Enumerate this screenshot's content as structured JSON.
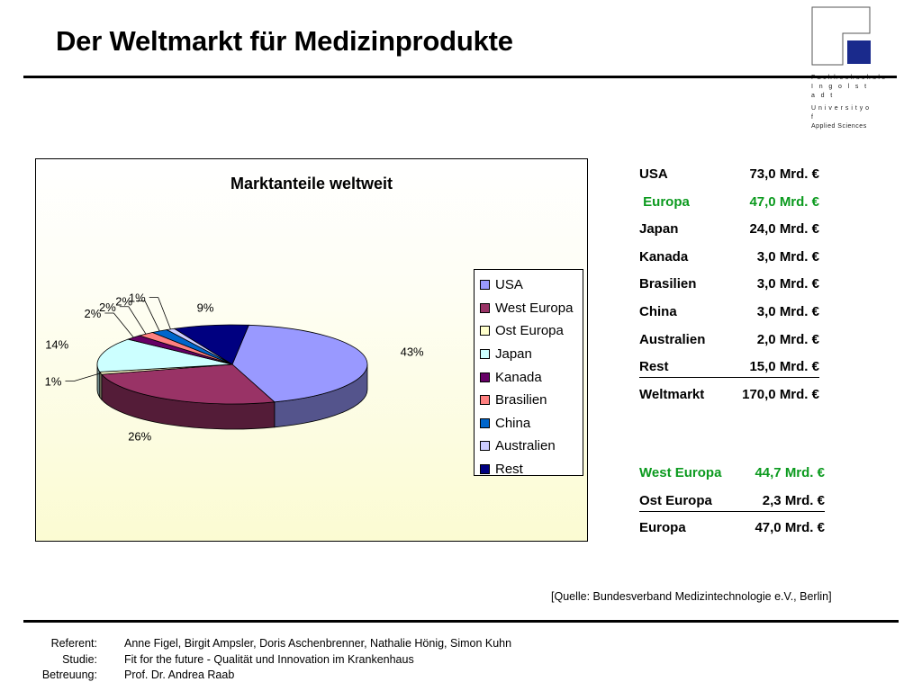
{
  "slide": {
    "title": "Der Weltmarkt für Medizinprodukte",
    "logo_lines": [
      "Fachhochschule",
      "I n g o l s t a d t",
      "U n i v e r s i t y  o f",
      "Applied Sciences"
    ],
    "source": "[Quelle: Bundesverband Medizintechnologie e.V., Berlin]"
  },
  "chart_data": {
    "type": "pie",
    "title": "Marktanteile weltweit",
    "categories": [
      "USA",
      "West Europa",
      "Ost Europa",
      "Japan",
      "Kanada",
      "Brasilien",
      "China",
      "Australien",
      "Rest"
    ],
    "values": [
      43,
      26,
      1,
      14,
      2,
      2,
      2,
      1,
      9
    ],
    "value_labels": [
      "43%",
      "26%",
      "1%",
      "14%",
      "2%",
      "2%",
      "2%",
      "1%",
      "9%"
    ],
    "colors": [
      "#9999ff",
      "#993366",
      "#ffffcc",
      "#ccffff",
      "#660066",
      "#ff8080",
      "#0066cc",
      "#ccccff",
      "#000080"
    ],
    "legend_position": "right",
    "three_d": true
  },
  "market_table": [
    {
      "label": "USA",
      "value": "73,0 Mrd. €",
      "color": "#000000",
      "underline": false
    },
    {
      "label": " Europa",
      "value": "47,0 Mrd. €",
      "color": "#0b9a1e",
      "underline": false
    },
    {
      "label": "Japan",
      "value": "24,0 Mrd. €",
      "color": "#000000",
      "underline": false
    },
    {
      "label": "Kanada",
      "value": "3,0 Mrd. €",
      "color": "#000000",
      "underline": false
    },
    {
      "label": "Brasilien",
      "value": "3,0 Mrd. €",
      "color": "#000000",
      "underline": false
    },
    {
      "label": "China",
      "value": "3,0 Mrd. €",
      "color": "#000000",
      "underline": false
    },
    {
      "label": "Australien",
      "value": "2,0 Mrd. €",
      "color": "#000000",
      "underline": false
    },
    {
      "label": "Rest",
      "value": "15,0 Mrd. €",
      "color": "#000000",
      "underline": true
    },
    {
      "label": "Weltmarkt",
      "value": "170,0 Mrd. €",
      "color": "#000000",
      "underline": false
    }
  ],
  "europe_table": [
    {
      "label": "West Europa",
      "value": "44,7 Mrd. €",
      "color": "#0b9a1e",
      "underline": false
    },
    {
      "label": "Ost Europa",
      "value": "2,3 Mrd. €",
      "color": "#000000",
      "underline": true
    },
    {
      "label": "Europa",
      "value": "47,0 Mrd. €",
      "color": "#000000",
      "underline": false
    }
  ],
  "footer": {
    "referent_label": "Referent:",
    "referent": "Anne Figel, Birgit Ampsler, Doris Aschenbrenner, Nathalie Hönig, Simon Kuhn",
    "studie_label": "Studie:",
    "studie": "Fit for the future - Qualität und Innovation im Krankenhaus",
    "betreuung_label": "Betreuung:",
    "betreuung": "Prof. Dr. Andrea Raab"
  }
}
